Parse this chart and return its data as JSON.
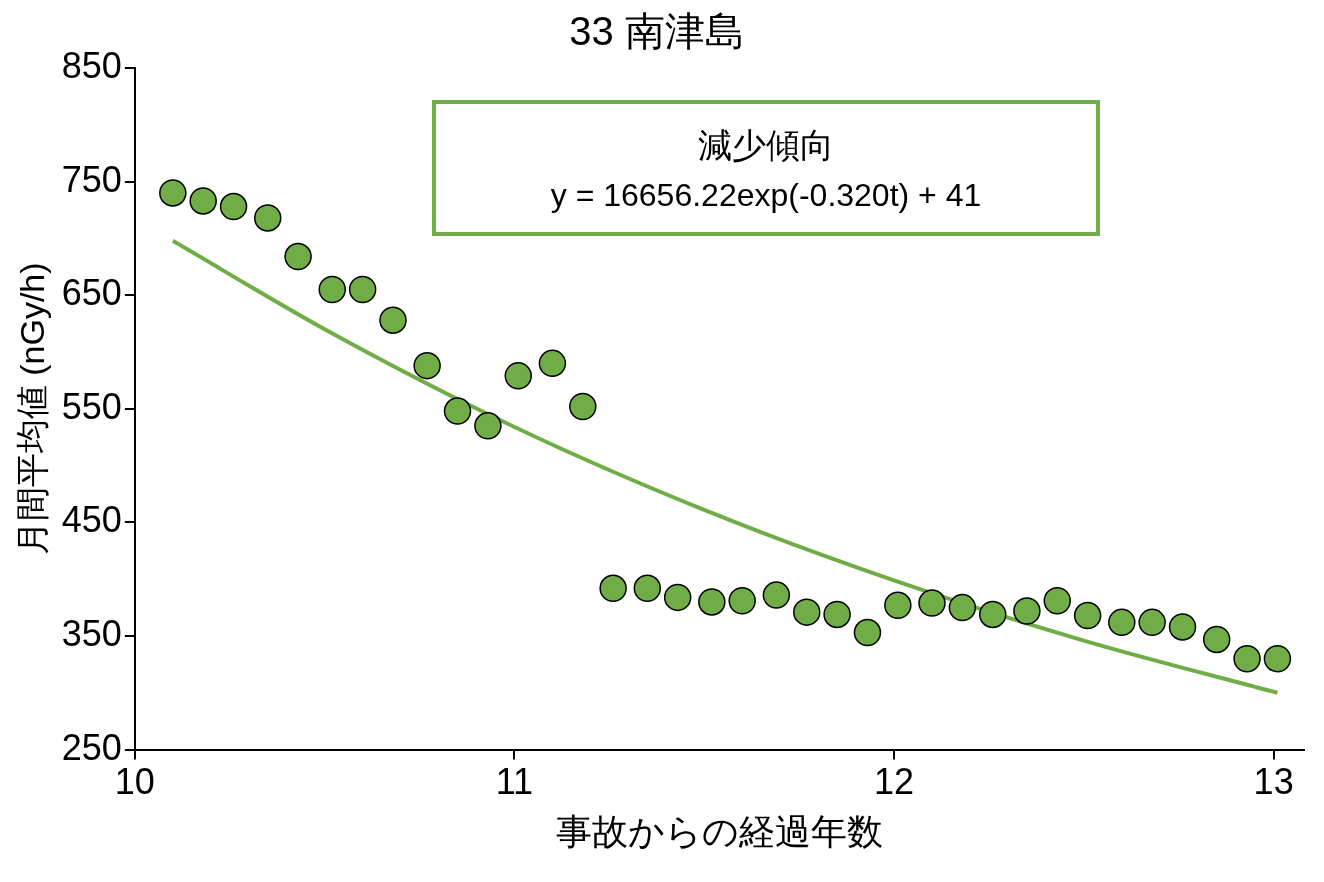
{
  "chart_data": {
    "type": "scatter",
    "title": "33 南津島",
    "xlabel": "事故からの経過年数",
    "ylabel": "月間平均値 (nGy/h)",
    "annotations": [
      "減少傾向",
      "y = 16656.22exp(-0.320t) + 41"
    ],
    "xlim": [
      10,
      13.08
    ],
    "xticks": [
      10,
      11,
      12,
      13
    ],
    "ylim": [
      250,
      850
    ],
    "yticks": [
      250,
      350,
      450,
      550,
      650,
      750,
      850
    ],
    "grid": false,
    "legend": false,
    "series": [
      {
        "type": "line",
        "color": "#70ad47",
        "line_style": "solid",
        "marker": "none",
        "x": [
          10.1,
          10.5,
          11,
          11.5,
          12,
          12.5,
          13.01
        ],
        "values": [
          698,
          620,
          534,
          461,
          399,
          346,
          300
        ]
      },
      {
        "type": "scatter",
        "color": "#70ad47",
        "marker": "circle",
        "x": [
          10.1,
          10.18,
          10.26,
          10.35,
          10.43,
          10.52,
          10.6,
          10.68,
          10.77,
          10.85,
          10.93,
          11.01,
          11.1,
          11.18,
          11.26,
          11.35,
          11.43,
          11.52,
          11.6,
          11.69,
          11.77,
          11.85,
          11.93,
          12.01,
          12.1,
          12.18,
          12.26,
          12.35,
          12.43,
          12.51,
          12.6,
          12.68,
          12.76,
          12.85,
          12.93,
          13.01
        ],
        "values": [
          740,
          733,
          728,
          718,
          684,
          655,
          655,
          628,
          588,
          548,
          535,
          579,
          590,
          552,
          392,
          392,
          384,
          380,
          381,
          386,
          371,
          369,
          353,
          377,
          379,
          375,
          369,
          372,
          381,
          368,
          362,
          362,
          358,
          347,
          330,
          330
        ]
      }
    ]
  }
}
